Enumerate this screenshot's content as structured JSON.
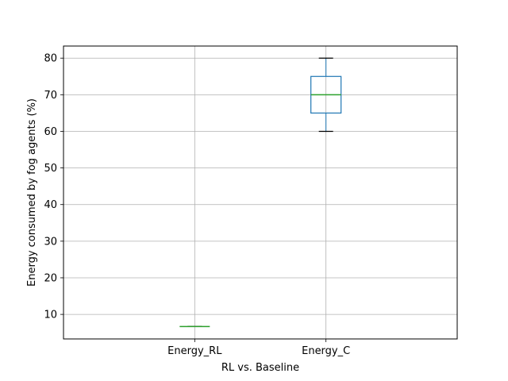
{
  "chart_data": {
    "type": "box",
    "title": "",
    "xlabel": "RL vs. Baseline",
    "ylabel": "Energy consumed by fog agents (%)",
    "categories": [
      "Energy_RL",
      "Energy_C"
    ],
    "boxes": [
      {
        "name": "Energy_RL",
        "whisker_low": 6.7,
        "q1": 6.7,
        "median": 6.7,
        "q3": 6.7,
        "whisker_high": 6.7
      },
      {
        "name": "Energy_C",
        "whisker_low": 60,
        "q1": 65,
        "median": 70,
        "q3": 75,
        "whisker_high": 80
      }
    ],
    "ylim": [
      3.3,
      83.3
    ],
    "yticks": [
      10,
      20,
      30,
      40,
      50,
      60,
      70,
      80
    ],
    "grid": true,
    "colors": {
      "box": "#1f77b4",
      "median": "#2ca02c",
      "whisker": "#1f77b4",
      "cap": "#000000",
      "grid": "#b0b0b0"
    }
  }
}
